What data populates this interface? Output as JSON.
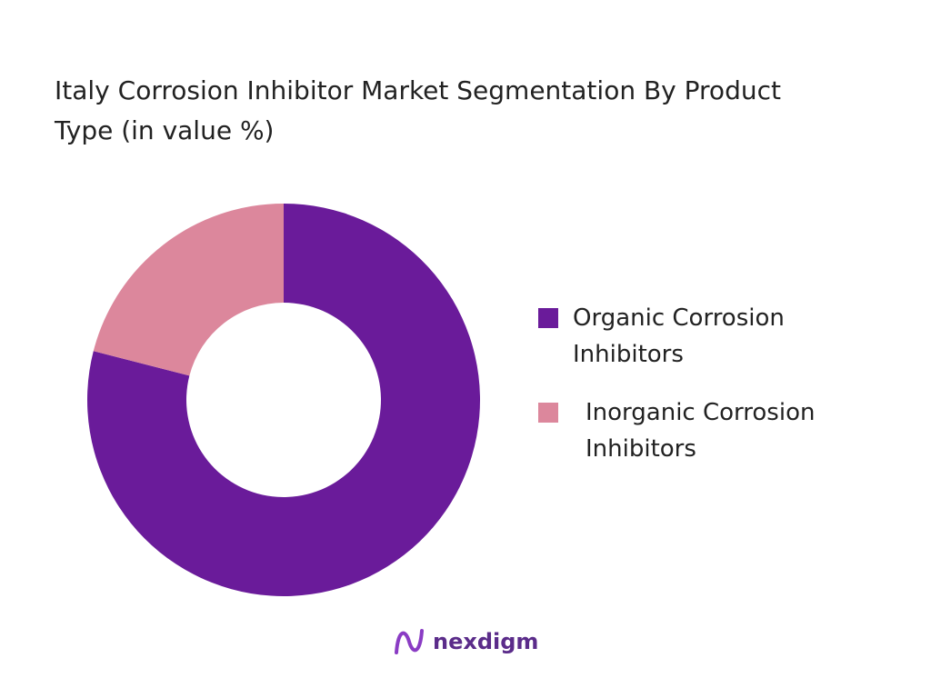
{
  "chart_data": {
    "type": "pie",
    "title": "Italy Corrosion Inhibitor Market Segmentation By Product Type (in value %)",
    "categories": [
      "Organic Corrosion Inhibitors",
      "Inorganic Corrosion Inhibitors"
    ],
    "values": [
      79,
      21
    ],
    "colors": [
      "#6a1b9a",
      "#dc879c"
    ],
    "legend": "right"
  },
  "brand": "nexdigm"
}
